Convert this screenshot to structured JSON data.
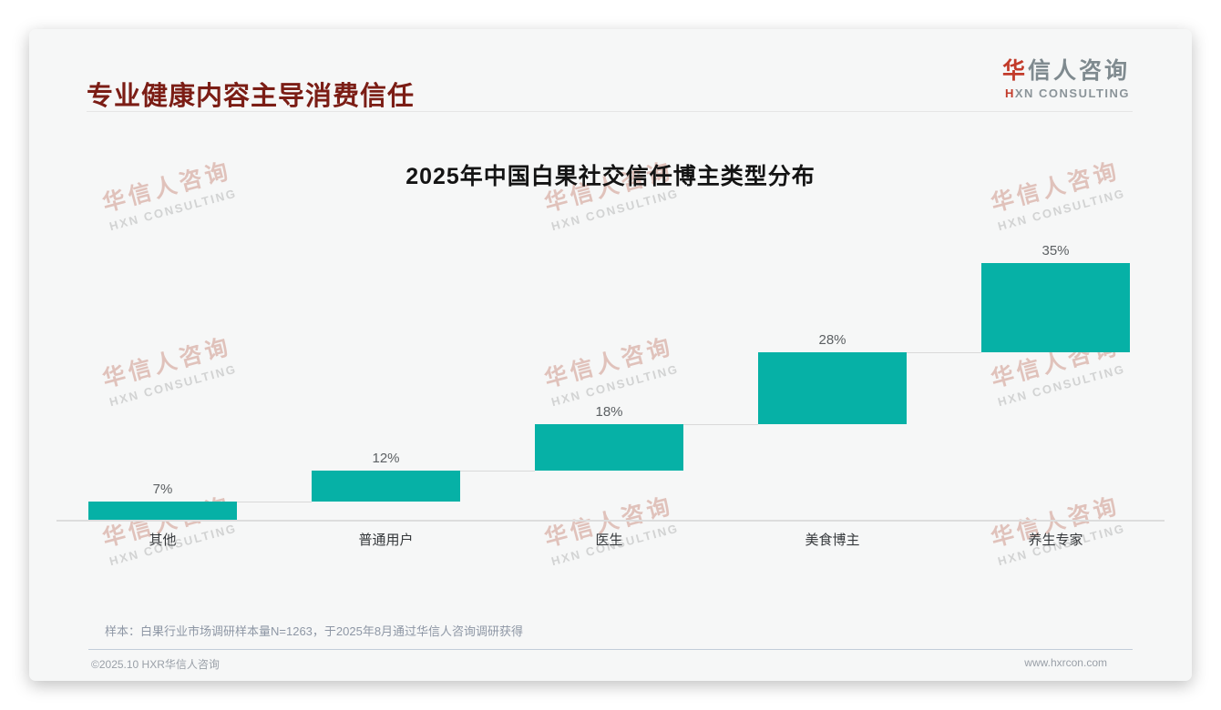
{
  "header": {
    "title": "专业健康内容主导消费信任"
  },
  "logo": {
    "cn_first": "华",
    "cn_rest": "信人咨询",
    "en_first": "H",
    "en_rest": "XN CONSULTING"
  },
  "watermark": {
    "cn": "华信人咨询",
    "en": "HXN CONSULTING"
  },
  "chart_data": {
    "type": "bar",
    "variant": "waterfall-steps",
    "title": "2025年中国白果社交信任博主类型分布",
    "categories": [
      "其他",
      "普通用户",
      "医生",
      "美食博主",
      "养生专家"
    ],
    "values": [
      7,
      12,
      18,
      28,
      35
    ],
    "labels": [
      "7%",
      "12%",
      "18%",
      "28%",
      "35%"
    ],
    "cumulative_starts": [
      0,
      7,
      19,
      37,
      65
    ],
    "unit": "%",
    "ylim": [
      0,
      100
    ],
    "bar_color": "#06b1a6",
    "grid": false,
    "legend": false,
    "baseline_axis": true
  },
  "footer": {
    "note": "样本：白果行业市场调研样本量N=1263，于2025年8月通过华信人咨询调研获得",
    "copyright": "©2025.10 HXR华信人咨询",
    "website": "www.hxrcon.com"
  },
  "colors": {
    "title_text": "#7b1d15",
    "brand_red": "#c23b2a",
    "bar": "#06b1a6",
    "percent_label": "#5c6063",
    "category_label": "#35383b"
  }
}
